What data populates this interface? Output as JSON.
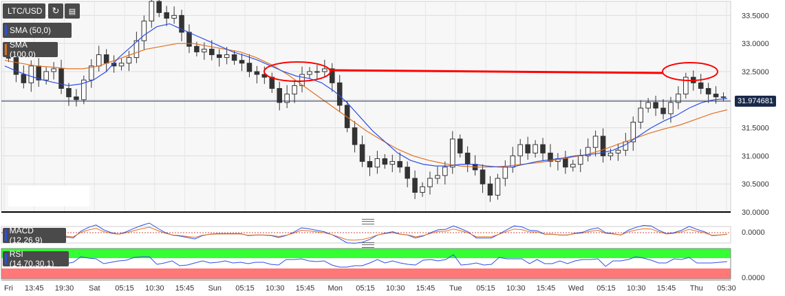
{
  "chart_data": {
    "type": "candlestick",
    "symbol": "LTC/USD",
    "indicators": {
      "sma_fast": {
        "label": "SMA (50,0)",
        "color": "#2b4ee6"
      },
      "sma_slow": {
        "label": "SMA (100,0)",
        "color": "#e07020"
      },
      "macd": {
        "label": "MACD (12,26,9)",
        "zero_label": "0.0000"
      },
      "rsi": {
        "label": "RSI (14,70,30,1)",
        "zero_label": "0.0000",
        "upper_color": "#33ff33",
        "lower_color": "#ff7777"
      }
    },
    "last_price": "31.974681",
    "y_ticks": [
      "33.5000",
      "33.0000",
      "32.5000",
      "32.0000",
      "31.5000",
      "31.0000",
      "30.5000",
      "30.0000"
    ],
    "ylim": [
      30.0,
      33.75
    ],
    "x_ticks": [
      "Fri",
      "13:45",
      "19:30",
      "Sat",
      "05:15",
      "10:30",
      "15:45",
      "Sun",
      "05:15",
      "10:30",
      "15:45",
      "Mon",
      "05:15",
      "10:30",
      "15:45",
      "Tue",
      "05:15",
      "10:30",
      "15:45",
      "Wed",
      "05:15",
      "10:30",
      "15:45",
      "Thu",
      "05:30"
    ],
    "price_series": [
      32.75,
      32.45,
      32.3,
      32.6,
      32.35,
      32.5,
      32.55,
      32.2,
      32.05,
      32.0,
      32.35,
      32.6,
      32.8,
      32.65,
      32.6,
      32.65,
      32.75,
      33.05,
      33.4,
      33.75,
      33.55,
      33.45,
      33.5,
      33.2,
      32.95,
      32.85,
      32.9,
      32.8,
      32.75,
      32.8,
      32.7,
      32.65,
      32.5,
      32.45,
      32.4,
      32.2,
      31.95,
      32.1,
      32.25,
      32.45,
      32.5,
      32.5,
      32.55,
      32.3,
      31.9,
      31.5,
      31.2,
      30.9,
      30.8,
      30.95,
      30.85,
      30.9,
      30.8,
      30.6,
      30.35,
      30.45,
      30.6,
      30.65,
      30.8,
      31.3,
      31.05,
      30.85,
      30.75,
      30.5,
      30.3,
      30.6,
      30.8,
      31.0,
      31.2,
      31.05,
      31.2,
      31.05,
      30.9,
      30.95,
      30.8,
      30.85,
      31.0,
      31.15,
      31.35,
      31.0,
      31.05,
      31.1,
      31.25,
      31.6,
      31.85,
      31.95,
      31.85,
      31.75,
      31.95,
      32.1,
      32.4,
      32.3,
      32.2,
      32.1,
      32.05,
      32.05
    ],
    "sma_fast_series": [
      32.6,
      32.5,
      32.42,
      32.35,
      32.3,
      32.25,
      32.28,
      32.35,
      32.5,
      32.75,
      32.95,
      33.15,
      33.3,
      33.35,
      33.25,
      33.15,
      33.05,
      32.95,
      32.85,
      32.78,
      32.7,
      32.6,
      32.5,
      32.42,
      32.38,
      32.3,
      32.15,
      31.95,
      31.7,
      31.45,
      31.25,
      31.05,
      30.92,
      30.85,
      30.82,
      30.82,
      30.85,
      30.85,
      30.82,
      30.8,
      30.8,
      30.85,
      30.9,
      30.93,
      30.96,
      31.0,
      31.02,
      31.05,
      31.1,
      31.2,
      31.35,
      31.5,
      31.62,
      31.72,
      31.85,
      31.95,
      32.0,
      32.02
    ],
    "sma_slow_series": [
      32.7,
      32.65,
      32.6,
      32.58,
      32.55,
      32.55,
      32.6,
      32.7,
      32.8,
      32.9,
      32.95,
      33.0,
      33.0,
      32.95,
      32.9,
      32.85,
      32.75,
      32.62,
      32.45,
      32.25,
      32.05,
      31.85,
      31.65,
      31.45,
      31.28,
      31.12,
      31.0,
      30.92,
      30.86,
      30.82,
      30.8,
      30.8,
      30.82,
      30.85,
      30.88,
      30.92,
      30.97,
      31.02,
      31.1,
      31.2,
      31.3,
      31.4,
      31.48,
      31.55,
      31.65,
      31.75,
      31.82
    ],
    "resistance_level": 32.5
  }
}
